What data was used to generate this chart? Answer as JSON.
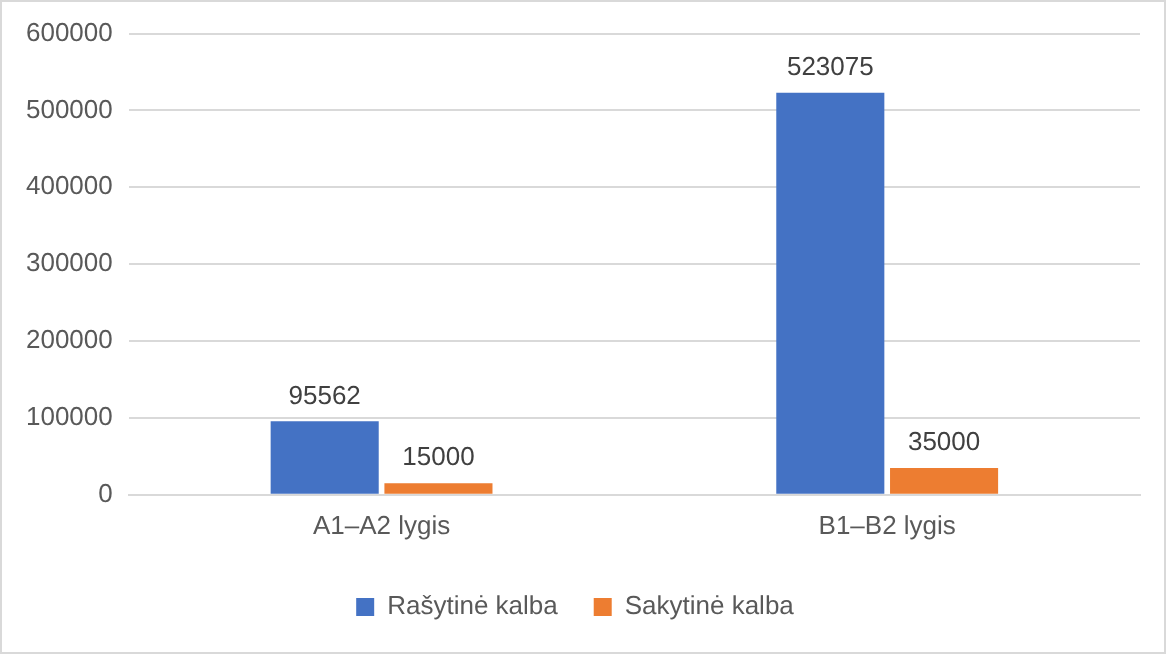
{
  "chart_data": {
    "type": "bar",
    "categories": [
      "A1–A2 lygis",
      "B1–B2 lygis"
    ],
    "series": [
      {
        "name": "Rašytinė kalba",
        "color": "#4472c4",
        "values": [
          95562,
          523075
        ]
      },
      {
        "name": "Sakytinė kalba",
        "color": "#ed7d31",
        "values": [
          15000,
          35000
        ]
      }
    ],
    "ylim": [
      0,
      600000
    ],
    "yticks": [
      0,
      100000,
      200000,
      300000,
      400000,
      500000,
      600000
    ],
    "grid": "y",
    "legend": "bottom",
    "data_labels": true
  }
}
